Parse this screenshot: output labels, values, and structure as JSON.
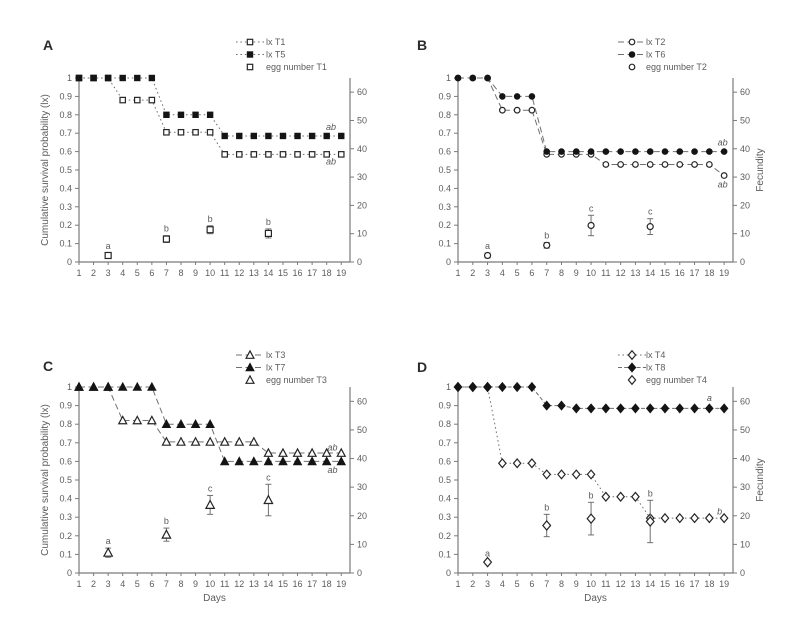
{
  "figure": {
    "left_axis_title": "Cumulative survival probability (lx)",
    "right_axis_title": "Fecundity",
    "x_axis_title": "Days",
    "colors": {
      "background": "#ffffff",
      "axis": "#7a7a7a",
      "line": "#707070",
      "marker_dark": "#141414",
      "marker_open_stroke": "#262626",
      "text": "#5c5c5c",
      "panel_letter": "#2b2b2b"
    }
  },
  "chart_data": [
    {
      "panel": "A",
      "type": "line",
      "x": [
        1,
        2,
        3,
        4,
        5,
        6,
        7,
        8,
        9,
        10,
        11,
        12,
        13,
        14,
        15,
        16,
        17,
        18,
        19
      ],
      "left_axis": {
        "range": [
          0,
          1
        ],
        "ticks": [
          0,
          0.1,
          0.2,
          0.3,
          0.4,
          0.5,
          0.6,
          0.7,
          0.8,
          0.9,
          1
        ]
      },
      "right_axis": {
        "range": [
          0,
          65
        ],
        "ticks": [
          0,
          10,
          20,
          30,
          40,
          50,
          60
        ]
      },
      "series": [
        {
          "name": "lx T1",
          "marker": "square",
          "fill": "open",
          "linestyle": "dotted",
          "values": [
            1,
            1,
            1,
            0.88,
            0.88,
            0.88,
            0.705,
            0.705,
            0.705,
            0.705,
            0.585,
            0.585,
            0.585,
            0.585,
            0.585,
            0.585,
            0.585,
            0.585,
            0.585
          ],
          "end_label": {
            "text": "ab",
            "day": 18.3,
            "lx": 0.545
          }
        },
        {
          "name": "lx T5",
          "marker": "square",
          "fill": "filled",
          "linestyle": "dotted",
          "values": [
            1,
            1,
            1,
            1,
            1,
            1,
            0.8,
            0.8,
            0.8,
            0.8,
            0.685,
            0.685,
            0.685,
            0.685,
            0.685,
            0.685,
            0.685,
            0.685,
            0.685
          ],
          "end_label": {
            "text": "ab",
            "day": 18.3,
            "lx": 0.735
          }
        }
      ],
      "egg_series": {
        "name": "egg number T1",
        "marker": "square",
        "axis": "right",
        "points": [
          {
            "day": 3,
            "mean": 2.3,
            "err": 0.8,
            "sig": "a"
          },
          {
            "day": 7,
            "mean": 8.1,
            "err": 1.2,
            "sig": "b"
          },
          {
            "day": 10,
            "mean": 11.4,
            "err": 1.4,
            "sig": "b"
          },
          {
            "day": 14,
            "mean": 10.1,
            "err": 1.6,
            "sig": "b"
          }
        ]
      }
    },
    {
      "panel": "B",
      "type": "line",
      "x": [
        1,
        2,
        3,
        4,
        5,
        6,
        7,
        8,
        9,
        10,
        11,
        12,
        13,
        14,
        15,
        16,
        17,
        18,
        19
      ],
      "left_axis": {
        "range": [
          0,
          1
        ],
        "ticks": [
          0,
          0.1,
          0.2,
          0.3,
          0.4,
          0.5,
          0.6,
          0.7,
          0.8,
          0.9,
          1
        ]
      },
      "right_axis": {
        "range": [
          0,
          65
        ],
        "ticks": [
          0,
          10,
          20,
          30,
          40,
          50,
          60
        ],
        "label": "Fecundity"
      },
      "series": [
        {
          "name": "lx T2",
          "marker": "circle",
          "fill": "open",
          "linestyle": "dashed",
          "values": [
            1,
            1,
            1,
            0.825,
            0.825,
            0.825,
            0.585,
            0.585,
            0.585,
            0.585,
            0.53,
            0.53,
            0.53,
            0.53,
            0.53,
            0.53,
            0.53,
            0.53,
            0.47
          ],
          "end_label": {
            "text": "ab",
            "day": 18.9,
            "lx": 0.42
          }
        },
        {
          "name": "lx T6",
          "marker": "circle",
          "fill": "filled",
          "linestyle": "dashed",
          "values": [
            1,
            1,
            1,
            0.9,
            0.9,
            0.9,
            0.6,
            0.6,
            0.6,
            0.6,
            0.6,
            0.6,
            0.6,
            0.6,
            0.6,
            0.6,
            0.6,
            0.6,
            0.6
          ],
          "end_label": {
            "text": "ab",
            "day": 18.9,
            "lx": 0.65
          }
        }
      ],
      "egg_series": {
        "name": "egg number T2",
        "marker": "circle",
        "axis": "right",
        "points": [
          {
            "day": 3,
            "mean": 2.3,
            "err": 0.9,
            "sig": "a"
          },
          {
            "day": 7,
            "mean": 5.9,
            "err": 1.0,
            "sig": "b"
          },
          {
            "day": 10,
            "mean": 12.9,
            "err": 3.6,
            "sig": "c"
          },
          {
            "day": 14,
            "mean": 12.5,
            "err": 2.8,
            "sig": "c"
          }
        ]
      }
    },
    {
      "panel": "C",
      "type": "line",
      "x": [
        1,
        2,
        3,
        4,
        5,
        6,
        7,
        8,
        9,
        10,
        11,
        12,
        13,
        14,
        15,
        16,
        17,
        18,
        19
      ],
      "xlabel": "Days",
      "left_axis": {
        "range": [
          0,
          1
        ],
        "ticks": [
          0,
          0.1,
          0.2,
          0.3,
          0.4,
          0.5,
          0.6,
          0.7,
          0.8,
          0.9,
          1
        ]
      },
      "right_axis": {
        "range": [
          0,
          65
        ],
        "ticks": [
          0,
          10,
          20,
          30,
          40,
          50,
          60
        ]
      },
      "series": [
        {
          "name": "lx T3",
          "marker": "triangle",
          "fill": "open",
          "linestyle": "dashed",
          "values": [
            1,
            1,
            1,
            0.82,
            0.82,
            0.82,
            0.705,
            0.705,
            0.705,
            0.705,
            0.705,
            0.705,
            0.705,
            0.645,
            0.645,
            0.645,
            0.645,
            0.645,
            0.645
          ],
          "end_label": {
            "text": "ab",
            "day": 18.4,
            "lx": 0.675
          }
        },
        {
          "name": "lx T7",
          "marker": "triangle",
          "fill": "filled",
          "linestyle": "dashed",
          "values": [
            1,
            1,
            1,
            1,
            1,
            1,
            0.8,
            0.8,
            0.8,
            0.8,
            0.6,
            0.6,
            0.6,
            0.6,
            0.6,
            0.6,
            0.6,
            0.6,
            0.6
          ],
          "end_label": {
            "text": "ab",
            "day": 18.4,
            "lx": 0.555
          }
        }
      ],
      "egg_series": {
        "name": "egg number T3",
        "marker": "triangle",
        "axis": "right",
        "points": [
          {
            "day": 3,
            "mean": 7.1,
            "err": 1.6,
            "sig": "a"
          },
          {
            "day": 7,
            "mean": 13.4,
            "err": 2.3,
            "sig": "b"
          },
          {
            "day": 10,
            "mean": 23.8,
            "err": 3.3,
            "sig": "c"
          },
          {
            "day": 14,
            "mean": 25.5,
            "err": 5.5,
            "sig": "c"
          }
        ]
      }
    },
    {
      "panel": "D",
      "type": "line",
      "x": [
        1,
        2,
        3,
        4,
        5,
        6,
        7,
        8,
        9,
        10,
        11,
        12,
        13,
        14,
        15,
        16,
        17,
        18,
        19
      ],
      "xlabel": "Days",
      "left_axis": {
        "range": [
          0,
          1
        ],
        "ticks": [
          0,
          0.1,
          0.2,
          0.3,
          0.4,
          0.5,
          0.6,
          0.7,
          0.8,
          0.9,
          1
        ]
      },
      "right_axis": {
        "range": [
          0,
          65
        ],
        "ticks": [
          0,
          10,
          20,
          30,
          40,
          50,
          60
        ],
        "label": "Fecundity"
      },
      "series": [
        {
          "name": "lx T4",
          "marker": "diamond",
          "fill": "open",
          "linestyle": "dotted",
          "values": [
            1,
            1,
            1,
            0.59,
            0.59,
            0.59,
            0.53,
            0.53,
            0.53,
            0.53,
            0.41,
            0.41,
            0.41,
            0.295,
            0.295,
            0.295,
            0.295,
            0.295,
            0.295
          ],
          "end_label": {
            "text": "b",
            "day": 18.7,
            "lx": 0.33
          }
        },
        {
          "name": "lx T8",
          "marker": "diamond",
          "fill": "filled",
          "linestyle": "dashdot",
          "values": [
            1,
            1,
            1,
            1,
            1,
            1,
            0.9,
            0.9,
            0.885,
            0.885,
            0.885,
            0.885,
            0.885,
            0.885,
            0.885,
            0.885,
            0.885,
            0.885,
            0.885
          ],
          "end_label": {
            "text": "a",
            "day": 18.0,
            "lx": 0.94
          }
        }
      ],
      "egg_series": {
        "name": "egg number T4",
        "marker": "diamond",
        "axis": "right",
        "points": [
          {
            "day": 3,
            "mean": 3.8,
            "err": 0.6,
            "sig": "a"
          },
          {
            "day": 7,
            "mean": 16.6,
            "err": 3.9,
            "sig": "b"
          },
          {
            "day": 10,
            "mean": 19.0,
            "err": 5.7,
            "sig": "b"
          },
          {
            "day": 14,
            "mean": 18.0,
            "err": 7.4,
            "sig": "b"
          }
        ]
      }
    }
  ]
}
